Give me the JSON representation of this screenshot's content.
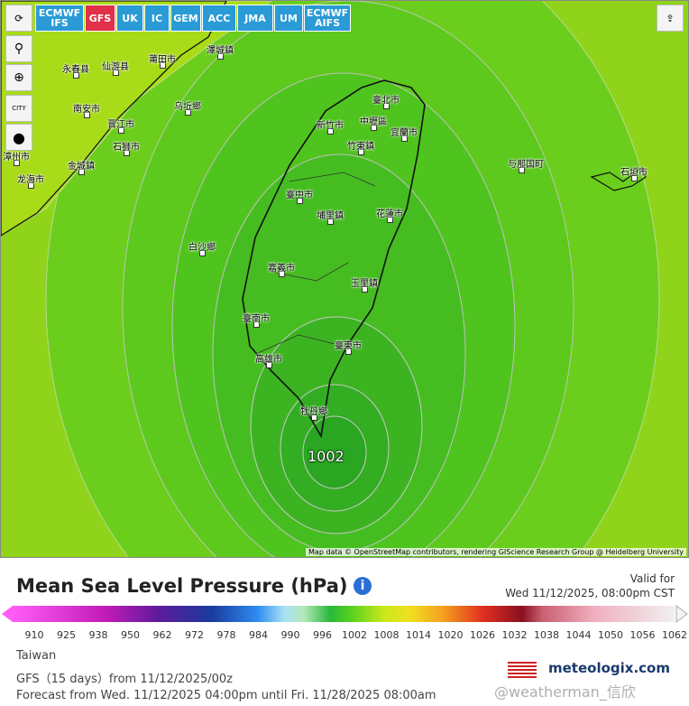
{
  "toolbar": {
    "models": [
      "ECMWF IFS",
      "GFS",
      "UK",
      "IC",
      "GEM",
      "ACC",
      "JMA",
      "UM",
      "ECMWF AIFS"
    ],
    "city_button": "CITY"
  },
  "map": {
    "places": [
      "澤城鎮",
      "莆田市",
      "永春县",
      "仙游县",
      "南安市",
      "晋江市",
      "乌坵鄉",
      "石狮市",
      "金城鎮",
      "龙海市",
      "漳州市",
      "臺北市",
      "中壢區",
      "新竹市",
      "宜蘭市",
      "竹東鎮",
      "与那国町",
      "石垣市",
      "臺中市",
      "埔里鎮",
      "花蓮市",
      "白沙鄉",
      "嘉義市",
      "玉里鎮",
      "臺南市",
      "臺東市",
      "高雄市",
      "牡丹鄉"
    ],
    "pressure_label": "1002",
    "attribution": "Map data © OpenStreetMap contributors, rendering GIScience Research Group @ Heidelberg University"
  },
  "legend": {
    "title": "Mean Sea Level Pressure (hPa)",
    "valid_label": "Valid for",
    "valid_time": "Wed 11/12/2025, 08:00pm CST",
    "ticks": [
      910,
      925,
      938,
      950,
      962,
      972,
      978,
      984,
      990,
      996,
      1002,
      1008,
      1014,
      1020,
      1026,
      1032,
      1038,
      1044,
      1050,
      1056,
      1062
    ]
  },
  "footer": {
    "region": "Taiwan",
    "model": "GFS（15 days）from 11/12/2025/00z",
    "forecast": "Forecast from Wed. 11/12/2025 04:00pm until Fri. 11/28/2025 08:00am",
    "brand": "meteologix.com",
    "watermark": "@weatherman_信欣"
  }
}
